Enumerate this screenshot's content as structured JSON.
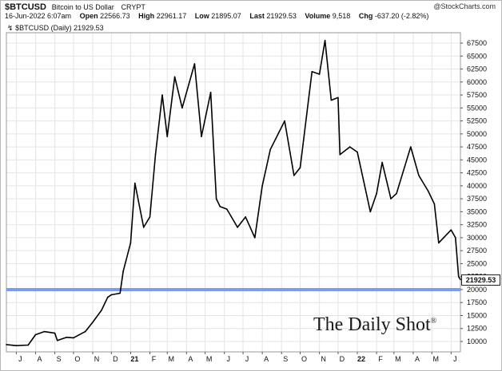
{
  "header": {
    "symbol": "$BTCUSD",
    "description": "Bitcoin to US Dollar",
    "exchange": "CRYPT",
    "source": "@StockCharts.com",
    "date": "16-Jun-2022 6:07am",
    "open_label": "Open",
    "open": "22566.73",
    "high_label": "High",
    "high": "22961.17",
    "low_label": "Low",
    "low": "21895.07",
    "last_label": "Last",
    "last": "21929.53",
    "volume_label": "Volume",
    "volume": "9,518",
    "chg_label": "Chg",
    "chg": "-637.20 (-2.82%)"
  },
  "legend": "$BTCUSD (Daily) 21929.53",
  "watermark": "The Daily Shot",
  "watermark_mark": "®",
  "last_marker": "21929.53",
  "colors": {
    "price": "#000000",
    "reference_line": "#7b9cf0",
    "grid": "#e4e4e4"
  },
  "chart_data": {
    "type": "line",
    "grid": true,
    "y_axis_side": "right",
    "ylim": [
      8000,
      69500
    ],
    "y_ticks": [
      10000,
      12500,
      15000,
      17500,
      20000,
      22500,
      25000,
      27500,
      30000,
      32500,
      35000,
      37500,
      40000,
      42500,
      45000,
      47500,
      50000,
      52500,
      55000,
      57500,
      60000,
      62500,
      65000,
      67500
    ],
    "x_tick_labels": [
      "J",
      "A",
      "S",
      "O",
      "N",
      "D",
      "21",
      "F",
      "M",
      "A",
      "M",
      "J",
      "J",
      "A",
      "S",
      "O",
      "N",
      "D",
      "22",
      "F",
      "M",
      "A",
      "M",
      "J"
    ],
    "x_tick_dates": [
      "2020-07-01",
      "2020-08-01",
      "2020-09-01",
      "2020-10-01",
      "2020-11-01",
      "2020-12-01",
      "2021-01-01",
      "2021-02-01",
      "2021-03-01",
      "2021-04-01",
      "2021-05-01",
      "2021-06-01",
      "2021-07-01",
      "2021-08-01",
      "2021-09-01",
      "2021-10-01",
      "2021-11-01",
      "2021-12-01",
      "2022-01-01",
      "2022-02-01",
      "2022-03-01",
      "2022-04-01",
      "2022-05-01",
      "2022-06-01"
    ],
    "x_range": [
      "2020-06-15",
      "2022-06-16"
    ],
    "reference_line": 20000,
    "series": [
      {
        "x": [
          "2020-06-15",
          "2020-07-01",
          "2020-07-20",
          "2020-08-01",
          "2020-08-15",
          "2020-09-01",
          "2020-09-05",
          "2020-09-20",
          "2020-10-01",
          "2020-10-20",
          "2020-11-01",
          "2020-11-15",
          "2020-11-25",
          "2020-12-01",
          "2020-12-15",
          "2020-12-20",
          "2021-01-01",
          "2021-01-08",
          "2021-01-22",
          "2021-02-01",
          "2021-02-10",
          "2021-02-21",
          "2021-03-01",
          "2021-03-13",
          "2021-03-25",
          "2021-04-14",
          "2021-04-25",
          "2021-05-10",
          "2021-05-19",
          "2021-05-25",
          "2021-06-05",
          "2021-06-22",
          "2021-07-05",
          "2021-07-20",
          "2021-08-01",
          "2021-08-14",
          "2021-09-06",
          "2021-09-21",
          "2021-10-01",
          "2021-10-20",
          "2021-11-01",
          "2021-11-10",
          "2021-11-20",
          "2021-12-01",
          "2021-12-04",
          "2021-12-20",
          "2022-01-01",
          "2022-01-22",
          "2022-02-01",
          "2022-02-10",
          "2022-02-24",
          "2022-03-05",
          "2022-03-28",
          "2022-04-10",
          "2022-04-25",
          "2022-05-05",
          "2022-05-12",
          "2022-05-20",
          "2022-06-01",
          "2022-06-08",
          "2022-06-13",
          "2022-06-16"
        ],
        "y": [
          9400,
          9200,
          9300,
          11300,
          11900,
          11600,
          10200,
          10800,
          10700,
          11900,
          13700,
          16000,
          18500,
          19000,
          19300,
          23500,
          29000,
          40500,
          32000,
          34000,
          46000,
          57500,
          49500,
          61000,
          55000,
          63500,
          49500,
          58000,
          37500,
          36000,
          35500,
          32000,
          34000,
          30000,
          40000,
          47000,
          52500,
          42000,
          43500,
          62000,
          61500,
          68000,
          56500,
          57000,
          46000,
          47500,
          46500,
          35000,
          38500,
          44500,
          37500,
          38500,
          47500,
          42000,
          39000,
          36500,
          29000,
          30000,
          31500,
          30000,
          22500,
          21930
        ]
      }
    ]
  }
}
